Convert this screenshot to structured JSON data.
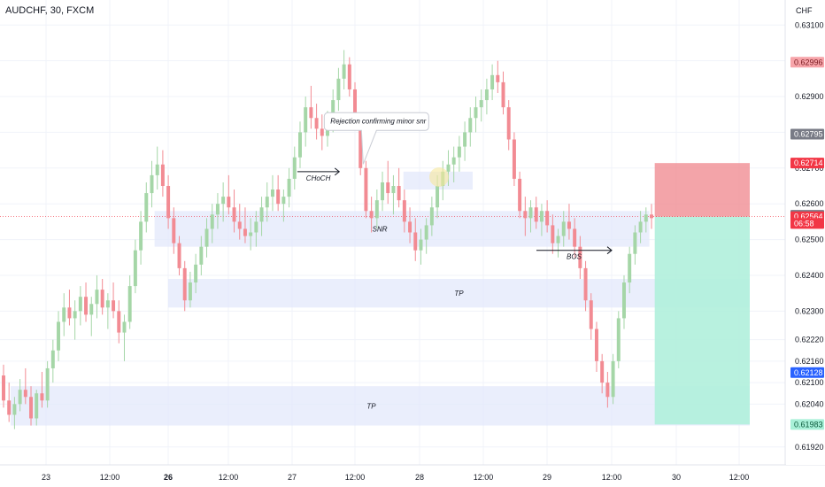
{
  "symbol_title": "AUDCHF, 30, FXCM",
  "chart_data": {
    "type": "candlestick",
    "currency_label": "CHF",
    "ylim": [
      0.6187,
      0.6317
    ],
    "y_ticks": [
      "0.63100",
      "0.63000",
      "0.62900",
      "0.62800",
      "0.62700",
      "0.62600",
      "0.62500",
      "0.62400",
      "0.62300",
      "0.62220",
      "0.62160",
      "0.62100",
      "0.62040",
      "0.61920"
    ],
    "x_ticks": [
      "23",
      "12:00",
      "26",
      "12:00",
      "27",
      "12:00",
      "28",
      "12:00",
      "29",
      "12:00",
      "30",
      "12:00"
    ],
    "price_badges": [
      {
        "label": "0.62996",
        "value": 0.62996,
        "color": "#f7a4a9",
        "text_color": "#7a1c22"
      },
      {
        "label": "0.62795",
        "value": 0.62795,
        "color": "#787b86",
        "text_color": "#ffffff"
      },
      {
        "label": "0.62714",
        "value": 0.62714,
        "color": "#f23645",
        "text_color": "#ffffff"
      },
      {
        "label": "0.62568",
        "value": 0.62568,
        "color": "#787b86",
        "text_color": "#ffffff"
      },
      {
        "label": "0.62564",
        "value": 0.62564,
        "color": "#f23645",
        "text_color": "#ffffff"
      },
      {
        "label": "06:58",
        "value": 0.62545,
        "color": "#f23645",
        "text_color": "#ffffff"
      },
      {
        "label": "0.62128",
        "value": 0.62128,
        "color": "#2962ff",
        "text_color": "#ffffff"
      },
      {
        "label": "0.61983",
        "value": 0.61983,
        "color": "#a8f0d8",
        "text_color": "#0b5a3c"
      }
    ],
    "zones": [
      {
        "label": "SNR",
        "x_start": "25 10:00",
        "x_end": "29 19:00",
        "y_top": 0.6258,
        "y_bottom": 0.6248
      },
      {
        "label": "",
        "x_start": "27 21:00",
        "x_end": "28 10:00",
        "y_top": 0.6269,
        "y_bottom": 0.6264
      },
      {
        "label": "TP",
        "x_start": "26 00:00",
        "x_end": "30 14:00",
        "y_top": 0.6239,
        "y_bottom": 0.6231
      },
      {
        "label": "TP",
        "x_start": "22 20:00",
        "x_end": "30 14:00",
        "y_top": 0.6209,
        "y_bottom": 0.6198
      }
    ],
    "position": {
      "entry": 0.62564,
      "stop": 0.62714,
      "target": 0.61983,
      "x_start": "29 20:00",
      "x_end": "30 14:00"
    },
    "annotations": [
      {
        "text": "CHoCH",
        "type": "arrow",
        "x_from": "27 01:00",
        "x_to": "27 09:00",
        "y": 0.6269
      },
      {
        "text": "BOS",
        "type": "arrow",
        "x_from": "28 22:00",
        "x_to": "29 12:00",
        "y": 0.6247
      },
      {
        "text": "Rejection confirming minor snr",
        "type": "callout",
        "x": "27 16:00",
        "y": 0.6283
      }
    ],
    "candles": [
      [
        0.6212,
        0.6215,
        0.6203,
        0.6205
      ],
      [
        0.6205,
        0.621,
        0.6199,
        0.6201
      ],
      [
        0.6201,
        0.6206,
        0.6197,
        0.6204
      ],
      [
        0.6204,
        0.6211,
        0.6202,
        0.6208
      ],
      [
        0.6208,
        0.6214,
        0.6204,
        0.6206
      ],
      [
        0.6206,
        0.6209,
        0.6198,
        0.62
      ],
      [
        0.62,
        0.6208,
        0.6198,
        0.6207
      ],
      [
        0.6207,
        0.6213,
        0.6203,
        0.6205
      ],
      [
        0.6205,
        0.6216,
        0.6203,
        0.6214
      ],
      [
        0.6214,
        0.6222,
        0.621,
        0.6219
      ],
      [
        0.6219,
        0.623,
        0.6216,
        0.6227
      ],
      [
        0.6227,
        0.6235,
        0.6223,
        0.6231
      ],
      [
        0.6231,
        0.6236,
        0.6226,
        0.6228
      ],
      [
        0.6228,
        0.6233,
        0.6222,
        0.623
      ],
      [
        0.623,
        0.6237,
        0.6226,
        0.6234
      ],
      [
        0.6234,
        0.6238,
        0.6227,
        0.6229
      ],
      [
        0.6229,
        0.6234,
        0.6223,
        0.6232
      ],
      [
        0.6232,
        0.624,
        0.6228,
        0.6236
      ],
      [
        0.6236,
        0.6239,
        0.6229,
        0.6231
      ],
      [
        0.6231,
        0.6235,
        0.6225,
        0.6233
      ],
      [
        0.6233,
        0.6238,
        0.6228,
        0.623
      ],
      [
        0.623,
        0.6233,
        0.6221,
        0.6224
      ],
      [
        0.6224,
        0.6229,
        0.6216,
        0.6227
      ],
      [
        0.6227,
        0.624,
        0.6225,
        0.6237
      ],
      [
        0.6237,
        0.625,
        0.6235,
        0.6247
      ],
      [
        0.6247,
        0.6258,
        0.6243,
        0.6255
      ],
      [
        0.6255,
        0.6266,
        0.6252,
        0.6263
      ],
      [
        0.6263,
        0.6272,
        0.6259,
        0.6268
      ],
      [
        0.6268,
        0.6276,
        0.6264,
        0.6271
      ],
      [
        0.6271,
        0.6275,
        0.6262,
        0.6265
      ],
      [
        0.6265,
        0.6268,
        0.6253,
        0.6256
      ],
      [
        0.6256,
        0.6259,
        0.6246,
        0.6249
      ],
      [
        0.6249,
        0.6251,
        0.624,
        0.6242
      ],
      [
        0.6242,
        0.6244,
        0.623,
        0.6233
      ],
      [
        0.6233,
        0.6241,
        0.6231,
        0.6238
      ],
      [
        0.6238,
        0.6246,
        0.6235,
        0.6243
      ],
      [
        0.6243,
        0.6251,
        0.624,
        0.6248
      ],
      [
        0.6248,
        0.6256,
        0.6245,
        0.6253
      ],
      [
        0.6253,
        0.626,
        0.6249,
        0.6257
      ],
      [
        0.6257,
        0.6263,
        0.6253,
        0.626
      ],
      [
        0.626,
        0.6266,
        0.6255,
        0.6262
      ],
      [
        0.6262,
        0.6268,
        0.6257,
        0.6259
      ],
      [
        0.6259,
        0.6264,
        0.6252,
        0.6255
      ],
      [
        0.6255,
        0.626,
        0.625,
        0.6253
      ],
      [
        0.6253,
        0.6259,
        0.6249,
        0.6251
      ],
      [
        0.6251,
        0.6256,
        0.6247,
        0.6252
      ],
      [
        0.6252,
        0.6258,
        0.6248,
        0.6255
      ],
      [
        0.6255,
        0.6262,
        0.6251,
        0.6259
      ],
      [
        0.6259,
        0.6266,
        0.6255,
        0.6262
      ],
      [
        0.6262,
        0.6268,
        0.6258,
        0.6264
      ],
      [
        0.6264,
        0.6268,
        0.6258,
        0.626
      ],
      [
        0.626,
        0.6264,
        0.6255,
        0.6262
      ],
      [
        0.6262,
        0.627,
        0.6259,
        0.6267
      ],
      [
        0.6267,
        0.6276,
        0.6264,
        0.6273
      ],
      [
        0.6273,
        0.6283,
        0.627,
        0.628
      ],
      [
        0.628,
        0.629,
        0.6276,
        0.6287
      ],
      [
        0.6287,
        0.6293,
        0.6281,
        0.6284
      ],
      [
        0.6284,
        0.6288,
        0.6278,
        0.6281
      ],
      [
        0.6281,
        0.6285,
        0.6275,
        0.6279
      ],
      [
        0.6279,
        0.6286,
        0.6276,
        0.6283
      ],
      [
        0.6283,
        0.6292,
        0.628,
        0.6289
      ],
      [
        0.6289,
        0.6298,
        0.6286,
        0.6295
      ],
      [
        0.6295,
        0.6303,
        0.6292,
        0.6299
      ],
      [
        0.6299,
        0.6301,
        0.629,
        0.6292
      ],
      [
        0.6292,
        0.6294,
        0.6281,
        0.6283
      ],
      [
        0.6283,
        0.6285,
        0.6268,
        0.627
      ],
      [
        0.627,
        0.6272,
        0.6256,
        0.6258
      ],
      [
        0.6258,
        0.6262,
        0.6252,
        0.6256
      ],
      [
        0.6256,
        0.6264,
        0.6253,
        0.6261
      ],
      [
        0.6261,
        0.6269,
        0.6258,
        0.6266
      ],
      [
        0.6266,
        0.6272,
        0.626,
        0.6263
      ],
      [
        0.6263,
        0.6268,
        0.6257,
        0.6265
      ],
      [
        0.6265,
        0.627,
        0.6259,
        0.6261
      ],
      [
        0.6261,
        0.6264,
        0.6252,
        0.6255
      ],
      [
        0.6255,
        0.6259,
        0.6249,
        0.6252
      ],
      [
        0.6252,
        0.6256,
        0.6244,
        0.6247
      ],
      [
        0.6247,
        0.6253,
        0.6243,
        0.625
      ],
      [
        0.625,
        0.6256,
        0.6246,
        0.6254
      ],
      [
        0.6254,
        0.6262,
        0.6251,
        0.6259
      ],
      [
        0.6259,
        0.6268,
        0.6256,
        0.6265
      ],
      [
        0.6265,
        0.6272,
        0.6261,
        0.6269
      ],
      [
        0.6269,
        0.6275,
        0.6265,
        0.6271
      ],
      [
        0.6271,
        0.6276,
        0.6266,
        0.6273
      ],
      [
        0.6273,
        0.6279,
        0.6269,
        0.6276
      ],
      [
        0.6276,
        0.6283,
        0.6272,
        0.628
      ],
      [
        0.628,
        0.6287,
        0.6276,
        0.6284
      ],
      [
        0.6284,
        0.629,
        0.628,
        0.6287
      ],
      [
        0.6287,
        0.6292,
        0.6283,
        0.6289
      ],
      [
        0.6289,
        0.6295,
        0.6285,
        0.6292
      ],
      [
        0.6292,
        0.6299,
        0.6289,
        0.6296
      ],
      [
        0.6296,
        0.63,
        0.6291,
        0.6294
      ],
      [
        0.6294,
        0.6297,
        0.6285,
        0.6287
      ],
      [
        0.6287,
        0.6289,
        0.6275,
        0.6278
      ],
      [
        0.6278,
        0.628,
        0.6265,
        0.6267
      ],
      [
        0.6267,
        0.6269,
        0.6256,
        0.6258
      ],
      [
        0.6258,
        0.6262,
        0.6251,
        0.6256
      ],
      [
        0.6256,
        0.6261,
        0.6252,
        0.6259
      ],
      [
        0.6259,
        0.6262,
        0.6253,
        0.6255
      ],
      [
        0.6255,
        0.626,
        0.6251,
        0.6258
      ],
      [
        0.6258,
        0.6261,
        0.6252,
        0.6254
      ],
      [
        0.6254,
        0.6257,
        0.6246,
        0.6249
      ],
      [
        0.6249,
        0.6253,
        0.6245,
        0.6251
      ],
      [
        0.6251,
        0.6258,
        0.6248,
        0.6255
      ],
      [
        0.6255,
        0.626,
        0.625,
        0.6253
      ],
      [
        0.6253,
        0.6256,
        0.6245,
        0.6248
      ],
      [
        0.6248,
        0.6251,
        0.6239,
        0.6242
      ],
      [
        0.6242,
        0.6244,
        0.623,
        0.6233
      ],
      [
        0.6233,
        0.6235,
        0.6222,
        0.6225
      ],
      [
        0.6225,
        0.6227,
        0.6213,
        0.6216
      ],
      [
        0.6216,
        0.6218,
        0.6207,
        0.621
      ],
      [
        0.621,
        0.6213,
        0.6203,
        0.6206
      ],
      [
        0.6206,
        0.6218,
        0.6204,
        0.6216
      ],
      [
        0.6216,
        0.623,
        0.6214,
        0.6228
      ],
      [
        0.6228,
        0.624,
        0.6225,
        0.6238
      ],
      [
        0.6238,
        0.6248,
        0.6235,
        0.6246
      ],
      [
        0.6246,
        0.6254,
        0.6243,
        0.6252
      ],
      [
        0.6252,
        0.6258,
        0.6249,
        0.6255
      ],
      [
        0.6255,
        0.6259,
        0.6252,
        0.6257
      ],
      [
        0.6257,
        0.626,
        0.6253,
        0.6256
      ]
    ]
  }
}
